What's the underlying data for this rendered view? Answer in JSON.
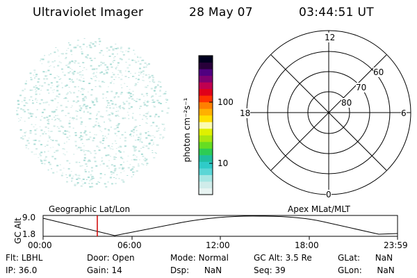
{
  "header": {
    "title": "Ultraviolet Imager",
    "date": "28 May 07",
    "time": "03:44:51 UT"
  },
  "colorbar": {
    "unit_label": "photon cm⁻²s⁻¹",
    "ticks": [
      "100",
      "10"
    ],
    "colors": [
      "#e8f4f2",
      "#d0ecea",
      "#a6e6e3",
      "#5ad6d6",
      "#2fcbc8",
      "#1fbea0",
      "#2dcc55",
      "#66dd22",
      "#a9e60f",
      "#dff000",
      "#fbfbb0",
      "#ffe000",
      "#ffb000",
      "#ff8000",
      "#ff3300",
      "#e0001a",
      "#c00050",
      "#800070",
      "#500080",
      "#28003a",
      "#000020"
    ]
  },
  "polar_plot": {
    "mlt_labels": {
      "top": "12",
      "bottom": "0",
      "left": "18",
      "right": "6"
    },
    "lat_labels": [
      "60",
      "70",
      "80"
    ]
  },
  "timeline": {
    "ylabel": "GC Alt",
    "y_ticks": [
      "9.0",
      "1.8"
    ],
    "left_title": "Geographic Lat/Lon",
    "right_title": "Apex MLat/MLT",
    "x_ticks": [
      "00:00",
      "06:00",
      "12:00",
      "18:00",
      "23:59"
    ],
    "marker_time": "03:44:51"
  },
  "info": {
    "filter": {
      "label": "Flt:",
      "value": "LBHL"
    },
    "ip": {
      "label": "IP:",
      "value": "36.0"
    },
    "door": {
      "label": "Door:",
      "value": "Open"
    },
    "gain": {
      "label": "Gain:",
      "value": "14"
    },
    "mode": {
      "label": "Mode:",
      "value": "Normal"
    },
    "dsp": {
      "label": "Dsp:",
      "value": "NaN"
    },
    "gc_alt": {
      "label": "GC Alt:",
      "value": "3.5 Re"
    },
    "seq": {
      "label": "Seq:",
      "value": "39"
    },
    "glat": {
      "label": "GLat:",
      "value": "NaN"
    },
    "glon": {
      "label": "GLon:",
      "value": "NaN"
    }
  }
}
